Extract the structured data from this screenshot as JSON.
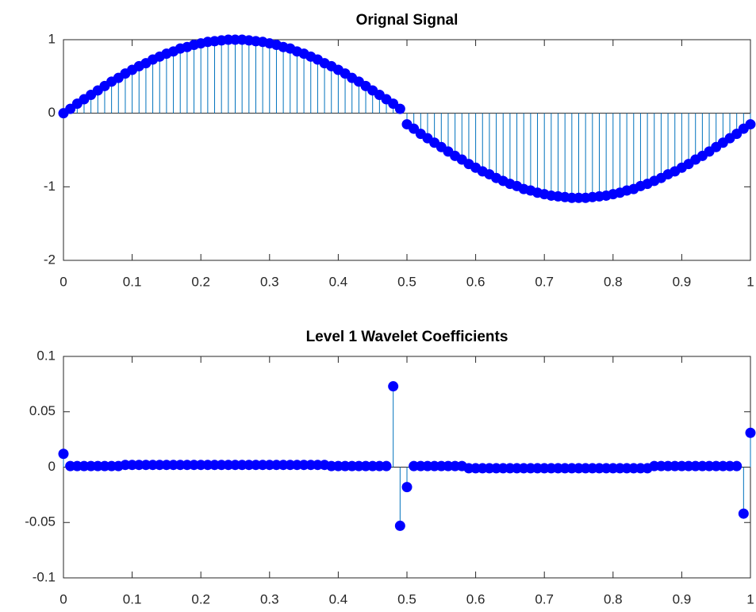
{
  "chart_data": [
    {
      "type": "stem",
      "title": "Orignal Signal",
      "color": "#0072bd",
      "marker_color": "#0000ff",
      "baseline": 0,
      "xlim": [
        0,
        1
      ],
      "xticks": [
        0,
        0.1,
        0.2,
        0.3,
        0.4,
        0.5,
        0.6,
        0.7,
        0.8,
        0.9,
        1
      ],
      "ylim": [
        -2,
        1
      ],
      "yticks": [
        -2,
        -1,
        0,
        1
      ],
      "x": [
        0,
        0.01,
        0.02,
        0.03,
        0.04,
        0.05,
        0.06,
        0.07,
        0.08,
        0.09,
        0.1,
        0.11,
        0.12,
        0.13,
        0.14,
        0.15,
        0.16,
        0.17,
        0.18,
        0.19,
        0.2,
        0.21,
        0.22,
        0.23,
        0.24,
        0.25,
        0.26,
        0.27,
        0.28,
        0.29,
        0.3,
        0.31,
        0.32,
        0.33,
        0.34,
        0.35,
        0.36,
        0.37,
        0.38,
        0.39,
        0.4,
        0.41,
        0.42,
        0.43,
        0.44,
        0.45,
        0.46,
        0.47,
        0.48,
        0.49,
        0.5,
        0.51,
        0.52,
        0.53,
        0.54,
        0.55,
        0.56,
        0.57,
        0.58,
        0.59,
        0.6,
        0.61,
        0.62,
        0.63,
        0.64,
        0.65,
        0.66,
        0.67,
        0.68,
        0.69,
        0.7,
        0.71,
        0.72,
        0.73,
        0.74,
        0.75,
        0.76,
        0.77,
        0.78,
        0.79,
        0.8,
        0.81,
        0.82,
        0.83,
        0.84,
        0.85,
        0.86,
        0.87,
        0.88,
        0.89,
        0.9,
        0.91,
        0.92,
        0.93,
        0.94,
        0.95,
        0.96,
        0.97,
        0.98,
        0.99,
        1
      ],
      "values": [
        0,
        0.06,
        0.13,
        0.19,
        0.25,
        0.31,
        0.37,
        0.43,
        0.48,
        0.54,
        0.59,
        0.64,
        0.68,
        0.73,
        0.77,
        0.81,
        0.84,
        0.88,
        0.9,
        0.93,
        0.95,
        0.97,
        0.98,
        0.99,
        1,
        1,
        1,
        0.99,
        0.98,
        0.97,
        0.95,
        0.93,
        0.9,
        0.88,
        0.84,
        0.81,
        0.77,
        0.73,
        0.68,
        0.64,
        0.59,
        0.54,
        0.48,
        0.43,
        0.37,
        0.31,
        0.25,
        0.19,
        0.13,
        0.06,
        -0.15,
        -0.21,
        -0.28,
        -0.34,
        -0.4,
        -0.46,
        -0.52,
        -0.58,
        -0.63,
        -0.69,
        -0.74,
        -0.79,
        -0.83,
        -0.88,
        -0.92,
        -0.96,
        -0.99,
        -1.03,
        -1.05,
        -1.08,
        -1.1,
        -1.12,
        -1.13,
        -1.14,
        -1.15,
        -1.15,
        -1.15,
        -1.14,
        -1.13,
        -1.12,
        -1.1,
        -1.08,
        -1.05,
        -1.03,
        -0.99,
        -0.96,
        -0.92,
        -0.88,
        -0.83,
        -0.79,
        -0.74,
        -0.69,
        -0.63,
        -0.58,
        -0.52,
        -0.46,
        -0.4,
        -0.34,
        -0.28,
        -0.21,
        -0.15
      ]
    },
    {
      "type": "stem",
      "title": "Level 1 Wavelet Coefficients",
      "color": "#0072bd",
      "marker_color": "#0000ff",
      "baseline": 0,
      "xlim": [
        0,
        1
      ],
      "xticks": [
        0,
        0.1,
        0.2,
        0.3,
        0.4,
        0.5,
        0.6,
        0.7,
        0.8,
        0.9,
        1
      ],
      "ylim": [
        -0.1,
        0.1
      ],
      "yticks": [
        -0.1,
        -0.05,
        0,
        0.05,
        0.1
      ],
      "x": [
        0,
        0.01,
        0.02,
        0.03,
        0.04,
        0.05,
        0.06,
        0.07,
        0.08,
        0.09,
        0.1,
        0.11,
        0.12,
        0.13,
        0.14,
        0.15,
        0.16,
        0.17,
        0.18,
        0.19,
        0.2,
        0.21,
        0.22,
        0.23,
        0.24,
        0.25,
        0.26,
        0.27,
        0.28,
        0.29,
        0.3,
        0.31,
        0.32,
        0.33,
        0.34,
        0.35,
        0.36,
        0.37,
        0.38,
        0.39,
        0.4,
        0.41,
        0.42,
        0.43,
        0.44,
        0.45,
        0.46,
        0.47,
        0.48,
        0.49,
        0.5,
        0.51,
        0.52,
        0.53,
        0.54,
        0.55,
        0.56,
        0.57,
        0.58,
        0.59,
        0.6,
        0.61,
        0.62,
        0.63,
        0.64,
        0.65,
        0.66,
        0.67,
        0.68,
        0.69,
        0.7,
        0.71,
        0.72,
        0.73,
        0.74,
        0.75,
        0.76,
        0.77,
        0.78,
        0.79,
        0.8,
        0.81,
        0.82,
        0.83,
        0.84,
        0.85,
        0.86,
        0.87,
        0.88,
        0.89,
        0.9,
        0.91,
        0.92,
        0.93,
        0.94,
        0.95,
        0.96,
        0.97,
        0.98,
        0.99,
        1
      ],
      "values": [
        0.012,
        0.001,
        0.001,
        0.001,
        0.001,
        0.001,
        0.001,
        0.001,
        0.001,
        0.002,
        0.002,
        0.002,
        0.002,
        0.002,
        0.002,
        0.002,
        0.002,
        0.002,
        0.002,
        0.002,
        0.002,
        0.002,
        0.002,
        0.002,
        0.002,
        0.002,
        0.002,
        0.002,
        0.002,
        0.002,
        0.002,
        0.002,
        0.002,
        0.002,
        0.002,
        0.002,
        0.002,
        0.002,
        0.002,
        0.001,
        0.001,
        0.001,
        0.001,
        0.001,
        0.001,
        0.001,
        0.001,
        0.001,
        0.073,
        -0.053,
        -0.018,
        0.001,
        0.001,
        0.001,
        0.001,
        0.001,
        0.001,
        0.001,
        0.001,
        -0.001,
        -0.001,
        -0.001,
        -0.001,
        -0.001,
        -0.001,
        -0.001,
        -0.001,
        -0.001,
        -0.001,
        -0.001,
        -0.001,
        -0.001,
        -0.001,
        -0.001,
        -0.001,
        -0.001,
        -0.001,
        -0.001,
        -0.001,
        -0.001,
        -0.001,
        -0.001,
        -0.001,
        -0.001,
        -0.001,
        -0.001,
        0.001,
        0.001,
        0.001,
        0.001,
        0.001,
        0.001,
        0.001,
        0.001,
        0.001,
        0.001,
        0.001,
        0.001,
        0.001,
        -0.042,
        0.031
      ]
    }
  ]
}
